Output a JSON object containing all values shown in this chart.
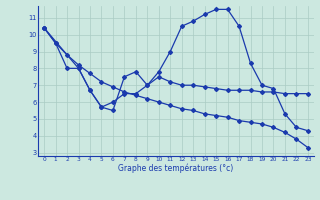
{
  "background_color": "#cce8e0",
  "grid_color": "#aaccc4",
  "line_color": "#1a3aad",
  "xlabel": "Graphe des températures (°c)",
  "xlim": [
    -0.5,
    23.5
  ],
  "ylim": [
    2.8,
    11.7
  ],
  "yticks": [
    3,
    4,
    5,
    6,
    7,
    8,
    9,
    10,
    11
  ],
  "xticks": [
    0,
    1,
    2,
    3,
    4,
    5,
    6,
    7,
    8,
    9,
    10,
    11,
    12,
    13,
    14,
    15,
    16,
    17,
    18,
    19,
    20,
    21,
    22,
    23
  ],
  "line1_x": [
    0,
    1,
    2,
    3,
    4,
    5,
    6,
    7,
    8,
    9,
    10,
    11,
    12,
    13,
    14,
    15,
    16,
    17,
    18,
    19,
    20,
    21,
    22,
    23
  ],
  "line1_y": [
    10.4,
    9.5,
    8.8,
    8.2,
    7.7,
    7.2,
    6.9,
    6.6,
    6.4,
    6.2,
    6.0,
    5.8,
    5.6,
    5.5,
    5.3,
    5.2,
    5.1,
    4.9,
    4.8,
    4.7,
    4.5,
    4.2,
    3.8,
    3.3
  ],
  "line2_x": [
    0,
    1,
    2,
    3,
    4,
    5,
    6,
    7,
    8,
    9,
    10,
    11,
    12,
    13,
    14,
    15,
    16,
    17,
    18,
    19,
    20,
    21,
    22,
    23
  ],
  "line2_y": [
    10.4,
    9.5,
    8.0,
    8.0,
    6.7,
    5.7,
    5.5,
    7.5,
    7.8,
    7.0,
    7.5,
    7.2,
    7.0,
    7.0,
    6.9,
    6.8,
    6.7,
    6.7,
    6.7,
    6.6,
    6.6,
    6.5,
    6.5,
    6.5
  ],
  "line3_x": [
    0,
    3,
    4,
    5,
    6,
    7,
    8,
    9,
    10,
    11,
    12,
    13,
    14,
    15,
    16,
    17,
    18,
    19,
    20,
    21,
    22,
    23
  ],
  "line3_y": [
    10.4,
    8.0,
    6.7,
    5.7,
    6.0,
    6.5,
    6.5,
    7.0,
    7.8,
    9.0,
    10.5,
    10.8,
    11.2,
    11.5,
    11.5,
    10.5,
    8.3,
    7.0,
    6.8,
    5.3,
    4.5,
    4.3
  ]
}
